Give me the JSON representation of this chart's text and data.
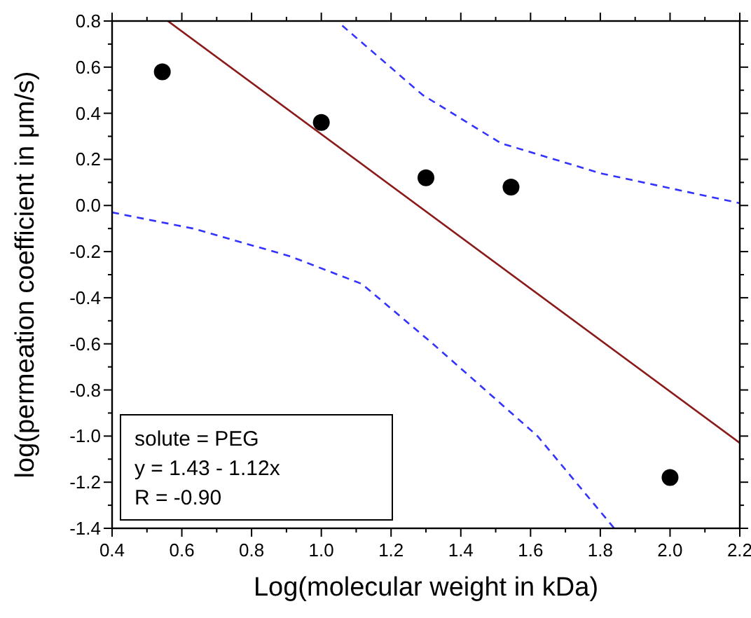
{
  "chart_data": {
    "type": "scatter",
    "xlabel": "Log(molecular weight in kDa)",
    "ylabel": "log(permeation coefficient in μm/s)",
    "xlim": [
      0.4,
      2.2
    ],
    "ylim": [
      -1.4,
      0.8
    ],
    "xticks": [
      0.4,
      {
        "value": 0.5,
        "label": null
      },
      0.6,
      {
        "value": 0.7,
        "label": null
      },
      0.8,
      {
        "value": 0.9,
        "label": null
      },
      {
        "value": 1,
        "label": "1.0"
      },
      {
        "value": 1.1,
        "label": null
      },
      1.2,
      {
        "value": 1.3,
        "label": null
      },
      1.4,
      {
        "value": 1.5,
        "label": null
      },
      1.6,
      {
        "value": 1.7,
        "label": null
      },
      1.8,
      {
        "value": 1.9,
        "label": null
      },
      {
        "value": 2,
        "label": "2.0"
      },
      {
        "value": 2.1,
        "label": null
      },
      2.2
    ],
    "yticks": [
      0.8,
      {
        "value": 0.7,
        "label": null
      },
      0.6,
      {
        "value": 0.5,
        "label": null
      },
      0.4,
      {
        "value": 0.3,
        "label": null
      },
      0.2,
      {
        "value": 0.1,
        "label": null
      },
      {
        "value": 0,
        "label": "0.0"
      },
      {
        "value": -0.1,
        "label": null
      },
      -0.2,
      {
        "value": -0.3,
        "label": null
      },
      -0.4,
      {
        "value": -0.5,
        "label": null
      },
      -0.6,
      {
        "value": -0.7,
        "label": null
      },
      -0.8,
      {
        "value": -0.9,
        "label": null
      },
      {
        "value": -1,
        "label": "-1.0"
      },
      {
        "value": -1.1,
        "label": null
      },
      -1.2,
      {
        "value": -1.3,
        "label": null
      },
      -1.4
    ],
    "grid": false,
    "series": [
      {
        "color": "#000000",
        "marker": "circle",
        "x": [
          0.544,
          1.0,
          1.3,
          1.544,
          2.0
        ],
        "values": [
          0.58,
          0.36,
          0.12,
          0.08,
          -1.18
        ]
      },
      {
        "type": "line",
        "color": "#8b1a1a",
        "line_style": "solid",
        "marker": "none",
        "x": [
          0.56,
          2.2
        ],
        "values": [
          0.8,
          -1.03
        ]
      },
      {
        "type": "line",
        "color": "#3333ff",
        "line_style": "dashed",
        "marker": "none",
        "x": [
          1.06,
          1.29,
          1.515,
          1.8,
          2.2
        ],
        "values": [
          0.78,
          0.48,
          0.27,
          0.14,
          0.01
        ]
      },
      {
        "type": "line",
        "color": "#3333ff",
        "line_style": "dashed",
        "marker": "none",
        "x": [
          0.4,
          0.633,
          0.91,
          1.116,
          1.32,
          1.47,
          1.62,
          1.73,
          1.84
        ],
        "values": [
          -0.03,
          -0.1,
          -0.22,
          -0.34,
          -0.6,
          -0.8,
          -1.0,
          -1.2,
          -1.4
        ]
      }
    ],
    "annotations": [
      "solute = PEG",
      "y = 1.43 - 1.12x",
      "R = -0.90"
    ]
  }
}
